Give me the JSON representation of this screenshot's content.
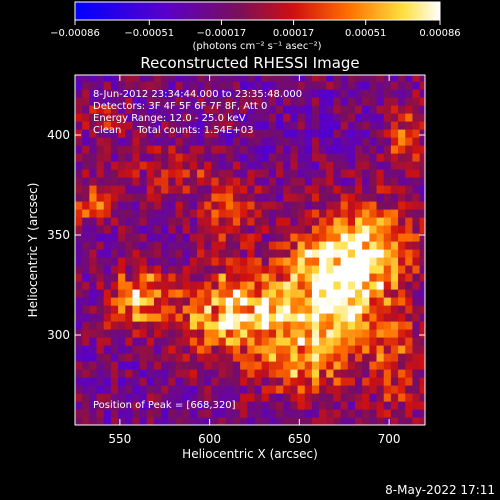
{
  "chart_data": {
    "type": "heatmap",
    "title": "Reconstructed RHESSI Image",
    "xlabel": "Heliocentric X (arcsec)",
    "ylabel": "Heliocentric Y (arcsec)",
    "xlim": [
      525,
      720
    ],
    "ylim": [
      255,
      430
    ],
    "x_ticks": [
      550,
      600,
      650,
      700
    ],
    "y_ticks": [
      300,
      350,
      400
    ],
    "x_tick_labels": [
      "550",
      "600",
      "650",
      "700"
    ],
    "y_tick_labels": [
      "300",
      "350",
      "400"
    ],
    "colorbar": {
      "range": [
        -0.00086,
        0.00086
      ],
      "ticks": [
        -0.00086,
        -0.00051,
        -0.00017,
        0.00017,
        0.00051,
        0.00086
      ],
      "tick_labels": [
        "−0.00086",
        "−0.00051",
        "−0.00017",
        "0.00017",
        "0.00051",
        "0.00086"
      ],
      "unit_label": "(photons cm⁻² s⁻¹ asec⁻²)",
      "colormap": "blue-purple-red-yellow-white"
    },
    "annotations": [
      "8-Jun-2012 23:34:44.000 to 23:35:48.000",
      "Detectors: 3F 4F 5F 6F 7F 8F, Att 0",
      "Energy Range: 12.0 - 25.0 keV",
      "Clean     Total counts: 1.54E+03"
    ],
    "peak_label": "Position of Peak = [668,320]",
    "peak": {
      "x": 668,
      "y": 320
    },
    "grid": false,
    "sources": [
      {
        "x": 615,
        "y": 310,
        "amp": 0.0009,
        "sx": 22,
        "sy": 16
      },
      {
        "x": 668,
        "y": 320,
        "amp": 0.001,
        "sx": 20,
        "sy": 22
      },
      {
        "x": 560,
        "y": 318,
        "amp": 0.00075,
        "sx": 12,
        "sy": 12
      },
      {
        "x": 690,
        "y": 345,
        "amp": 0.0007,
        "sx": 20,
        "sy": 15
      },
      {
        "x": 650,
        "y": 283,
        "amp": 0.00045,
        "sx": 18,
        "sy": 10
      },
      {
        "x": 578,
        "y": 383,
        "amp": 0.00035,
        "sx": 16,
        "sy": 10
      },
      {
        "x": 535,
        "y": 367,
        "amp": 0.0005,
        "sx": 8,
        "sy": 8
      },
      {
        "x": 610,
        "y": 362,
        "amp": 0.00045,
        "sx": 12,
        "sy": 12
      },
      {
        "x": 708,
        "y": 400,
        "amp": 0.00045,
        "sx": 8,
        "sy": 15
      },
      {
        "x": 705,
        "y": 285,
        "amp": 0.0004,
        "sx": 12,
        "sy": 20
      },
      {
        "x": 540,
        "y": 408,
        "amp": 0.0003,
        "sx": 10,
        "sy": 6
      }
    ]
  },
  "footer": {
    "timestamp": "8-May-2022 17:11"
  }
}
